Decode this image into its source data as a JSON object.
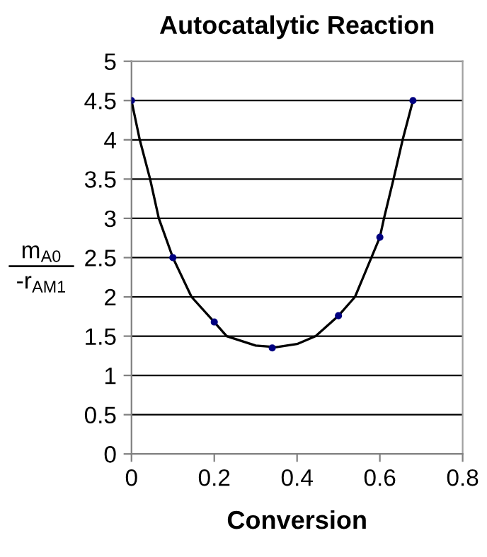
{
  "chart_data": {
    "type": "line",
    "title": "Autocatalytic Reaction",
    "xlabel": "Conversion",
    "ylabel": "m$_{A0}$\n-r$_{AM1}$",
    "xlim": [
      0,
      0.8
    ],
    "xticks": [
      0,
      0.2,
      0.4,
      0.6,
      0.8
    ],
    "ylim": [
      0,
      5
    ],
    "yticks": [
      0,
      0.5,
      1,
      1.5,
      2,
      2.5,
      3,
      3.5,
      4,
      4.5,
      5
    ],
    "grid": "y",
    "series": [
      {
        "color": "#000000",
        "marker": "none",
        "x": [
          0,
          0.02,
          0.045,
          0.066,
          0.1,
          0.145,
          0.2,
          0.23,
          0.3,
          0.35,
          0.4,
          0.445,
          0.5,
          0.54,
          0.6,
          0.61,
          0.633,
          0.655,
          0.68
        ],
        "values": [
          4.5,
          4,
          3.5,
          3,
          2.5,
          2,
          1.68,
          1.5,
          1.38,
          1.36,
          1.4,
          1.5,
          1.76,
          2,
          2.76,
          3,
          3.5,
          4,
          4.5
        ]
      },
      {
        "type": "scatter",
        "color": "#000080",
        "marker": "circle",
        "x": [
          0,
          0.1,
          0.2,
          0.34,
          0.5,
          0.6,
          0.68
        ],
        "values": [
          4.5,
          2.5,
          1.68,
          1.35,
          1.76,
          2.76,
          4.5
        ]
      }
    ]
  }
}
